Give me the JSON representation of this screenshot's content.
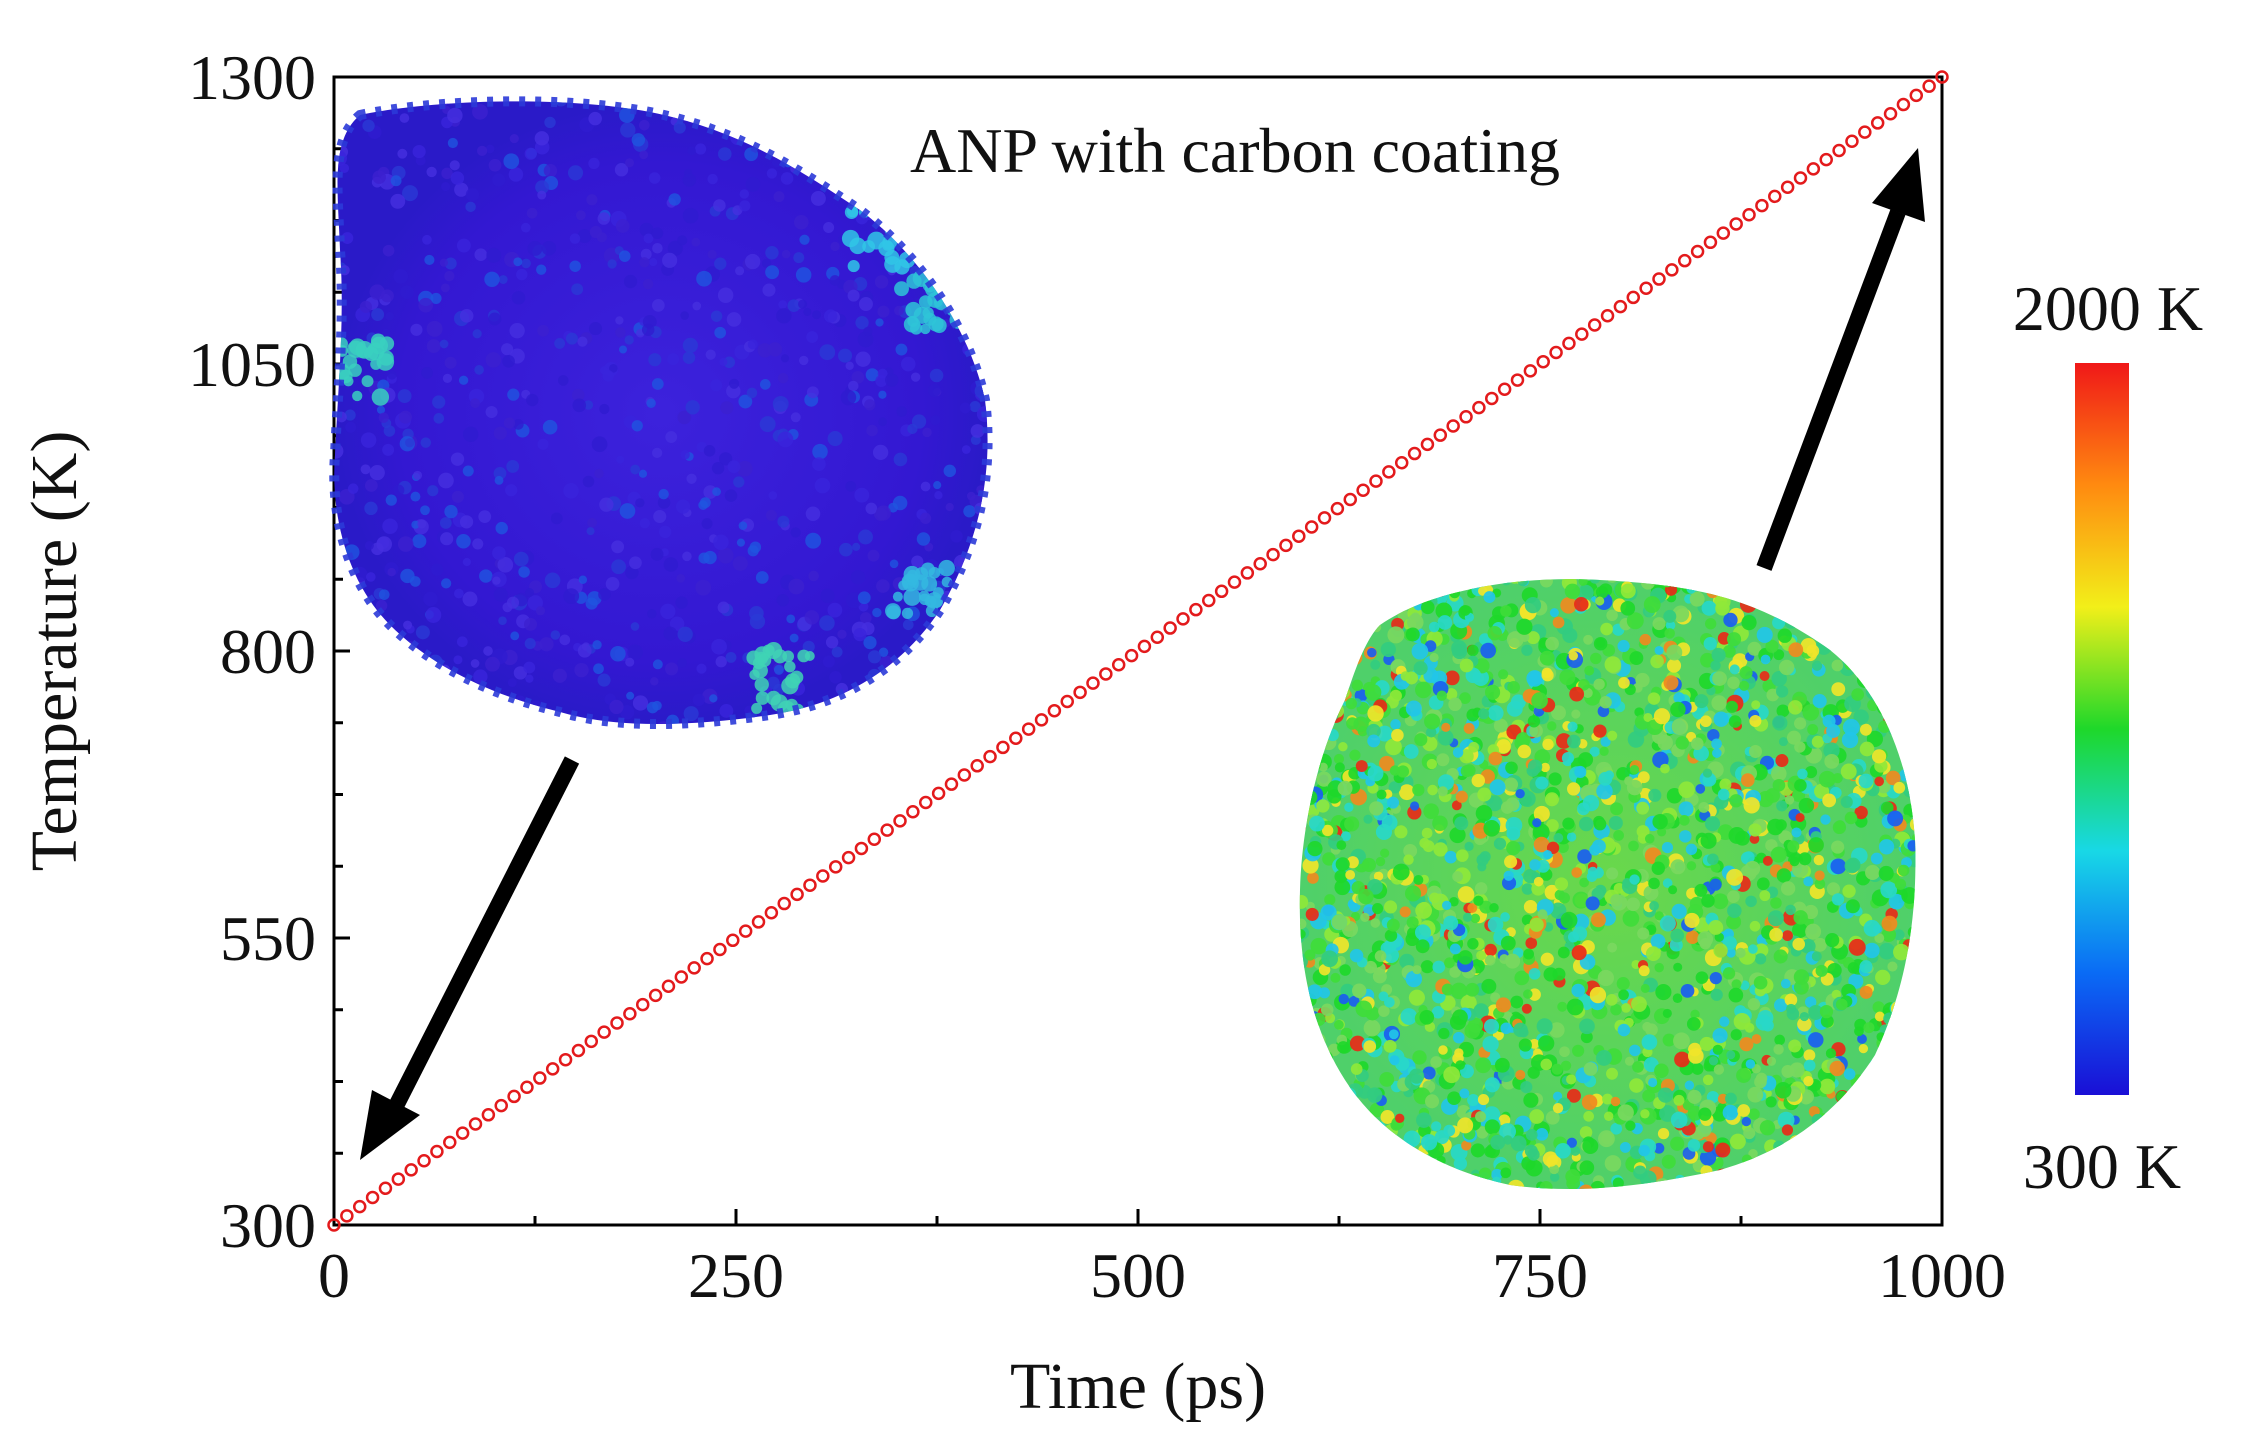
{
  "chart_data": {
    "type": "scatter",
    "title": "",
    "annotation": "ANP with carbon coating",
    "xlabel": "Time (ps)",
    "ylabel": "Temperature (K)",
    "xlim": [
      0,
      1000
    ],
    "ylim": [
      300,
      1300
    ],
    "xticks": [
      0,
      250,
      500,
      750,
      1000
    ],
    "yticks": [
      300,
      550,
      800,
      1050,
      1300
    ],
    "grid": false,
    "series": [
      {
        "name": "Temperature",
        "marker": "open-circle",
        "color": "#e31a1c",
        "x_start": 0,
        "x_end": 1000,
        "y_start": 300,
        "y_end": 1300,
        "n_points": 126
      }
    ],
    "colorbar": {
      "max_label": "2000 K",
      "min_label": "300 K",
      "max_value": 2000,
      "min_value": 300,
      "colors": [
        "#1a0fd6",
        "#0a6bf5",
        "#18d8e6",
        "#1ed82a",
        "#f2ef19",
        "#ff8a10",
        "#f01818"
      ]
    },
    "insets": [
      {
        "name": "nanoparticle-initial",
        "points_to": [
          0,
          300
        ],
        "dominant_color": "#3a18d6"
      },
      {
        "name": "nanoparticle-final",
        "points_to": [
          1000,
          1300
        ],
        "dominant_color": "#5fd03a"
      }
    ]
  }
}
